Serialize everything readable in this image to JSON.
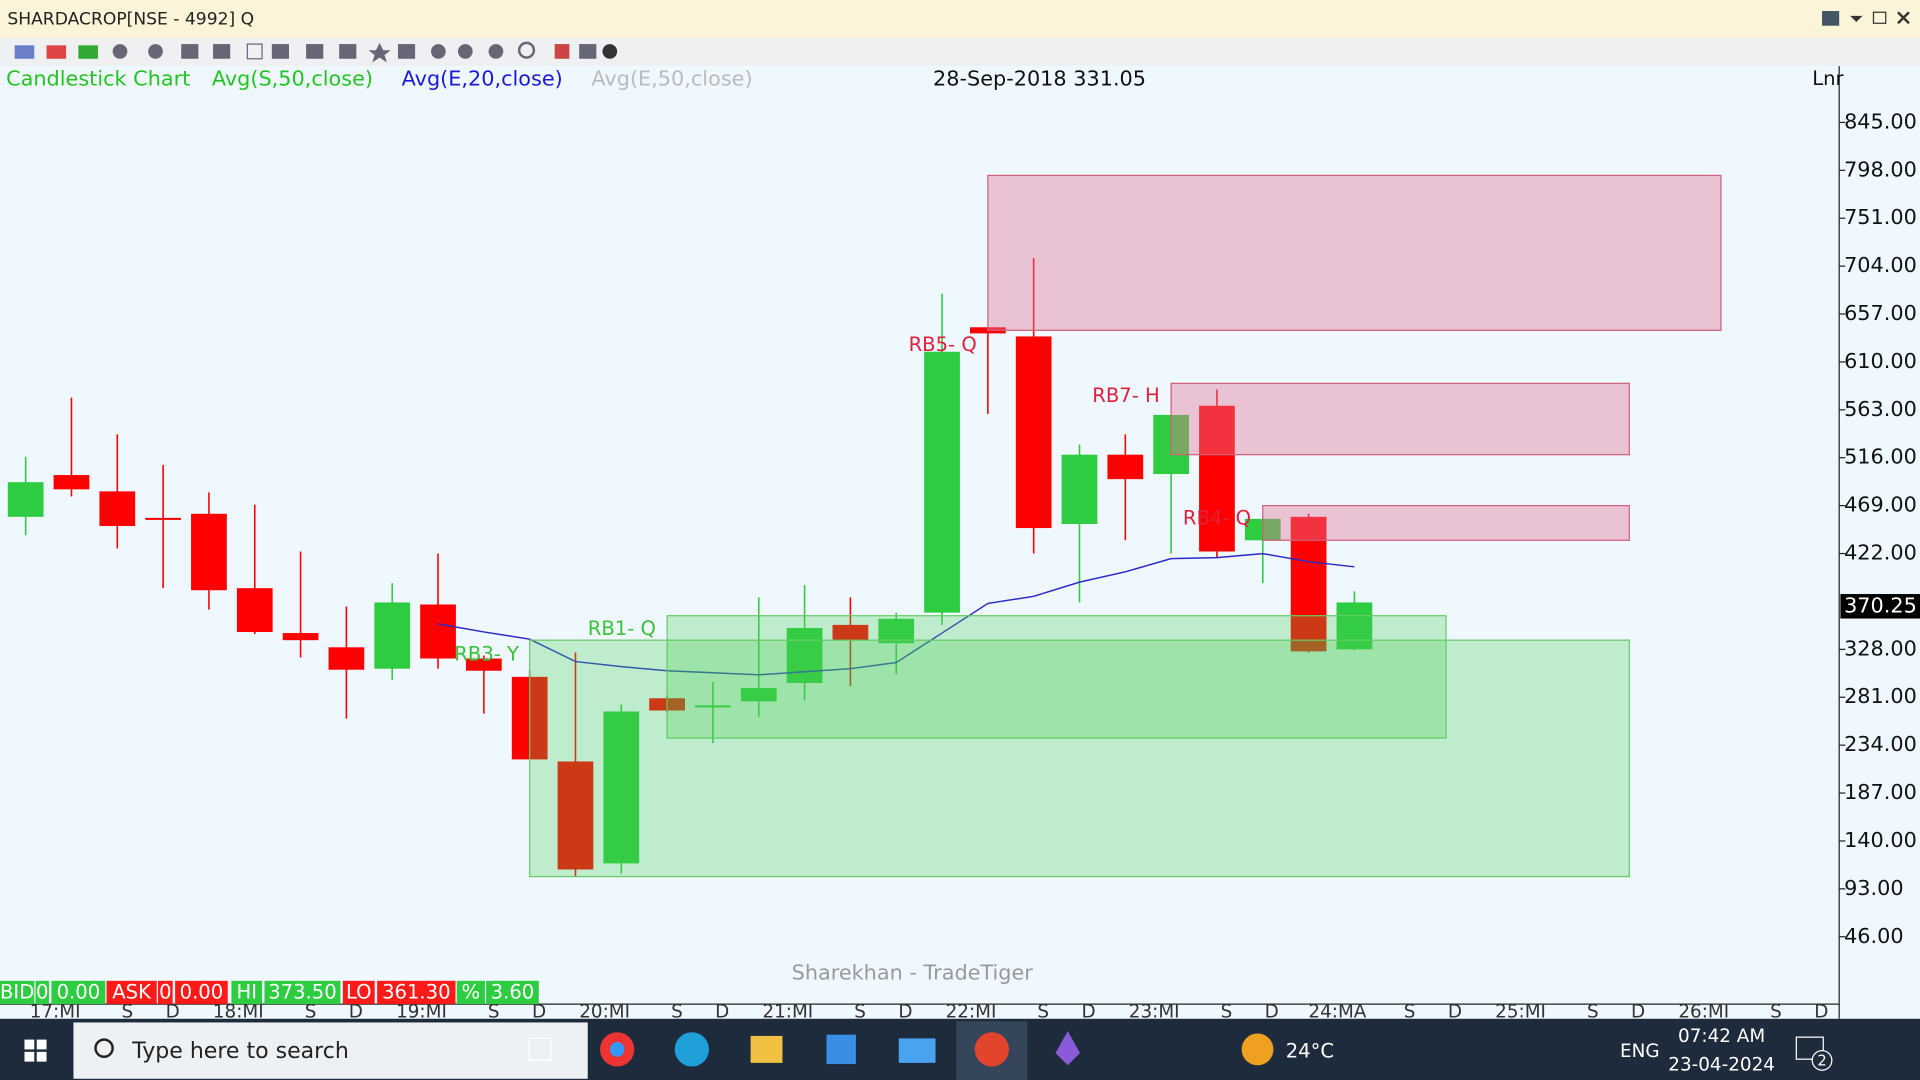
{
  "window": {
    "title": "SHARDACROP[NSE - 4992] Q"
  },
  "header": {
    "legend": [
      {
        "text": "Candlestick Chart",
        "color": "#22c422"
      },
      {
        "text": "Avg(S,50,close)",
        "color": "#22c422"
      },
      {
        "text": "Avg(E,20,close)",
        "color": "#1a1ad8"
      },
      {
        "text": "Avg(E,50,close)",
        "color": "#bbbbbb"
      }
    ],
    "cursor_info": "28-Sep-2018 331.05",
    "scale_mode": "Lnr"
  },
  "chart_data": {
    "type": "candlestick",
    "open": [
      458,
      499,
      483,
      457,
      461,
      388,
      344,
      330,
      309,
      372,
      319,
      301,
      218,
      118,
      280,
      271,
      277,
      295,
      352,
      334,
      364,
      644,
      635,
      451,
      519,
      500,
      567,
      435,
      458,
      328
    ],
    "high": [
      517,
      575,
      539,
      509,
      482,
      470,
      424,
      370,
      393,
      422,
      322,
      307,
      325,
      274,
      283,
      296,
      379,
      391,
      379,
      364,
      677,
      644,
      712,
      529,
      539,
      558,
      583,
      458,
      461,
      385
    ],
    "low": [
      440,
      478,
      427,
      388,
      367,
      343,
      320,
      260,
      298,
      309,
      265,
      220,
      105,
      108,
      266,
      236,
      262,
      278,
      292,
      304,
      352,
      559,
      422,
      374,
      435,
      422,
      418,
      393,
      325,
      327
    ],
    "close": [
      492,
      485,
      449,
      455,
      386,
      345,
      337,
      308,
      374,
      319,
      307,
      220,
      112,
      267,
      268,
      273,
      290,
      349,
      337,
      358,
      620,
      638,
      447,
      519,
      495,
      558,
      424,
      456,
      326,
      374
    ],
    "up_color": "#2ecc40",
    "down_color": "#ff0000",
    "series": [
      {
        "name": "Avg(E,20,close)",
        "color": "#2a2ac8",
        "values": [
          null,
          null,
          null,
          null,
          null,
          null,
          null,
          null,
          null,
          353,
          345,
          338,
          316,
          311,
          307,
          305,
          303,
          306,
          309,
          315,
          344,
          373,
          380,
          394,
          404,
          417,
          418,
          422,
          414,
          409
        ]
      }
    ],
    "zones": [
      {
        "x": [
          21,
          37
        ],
        "top": 793,
        "bottom": 641,
        "tone": "supply"
      },
      {
        "x": [
          25,
          35
        ],
        "top": 589,
        "bottom": 519,
        "tone": "supply"
      },
      {
        "x": [
          27,
          35
        ],
        "top": 469,
        "bottom": 435,
        "tone": "supply"
      },
      {
        "x": [
          14,
          31
        ],
        "top": 361,
        "bottom": 241,
        "tone": "demand"
      },
      {
        "x": [
          11,
          35
        ],
        "top": 337,
        "bottom": 105,
        "tone": "demand"
      }
    ],
    "annotations": [
      {
        "text": "RB5- Q",
        "color": "#e0203a"
      },
      {
        "text": "RB7- H",
        "color": "#e0203a"
      },
      {
        "text": "RB4- Q",
        "color": "#e0203a"
      },
      {
        "text": "RB1- Q",
        "color": "#38c238"
      },
      {
        "text": "RB3- Y",
        "color": "#38c238"
      }
    ],
    "xlim": [
      -0.56,
      39.5
    ],
    "ylim": [
      0,
      900
    ],
    "yticks": [
      {
        "value": 845,
        "label": "845.00"
      },
      {
        "value": 798,
        "label": "798.00"
      },
      {
        "value": 751,
        "label": "751.00"
      },
      {
        "value": 704,
        "label": "704.00"
      },
      {
        "value": 657,
        "label": "657.00"
      },
      {
        "value": 610,
        "label": "610.00"
      },
      {
        "value": 563,
        "label": "563.00"
      },
      {
        "value": 516,
        "label": "516.00"
      },
      {
        "value": 469,
        "label": "469.00"
      },
      {
        "value": 422,
        "label": "422.00"
      },
      {
        "value": 328,
        "label": "328.00"
      },
      {
        "value": 281,
        "label": "281.00"
      },
      {
        "value": 234,
        "label": "234.00"
      },
      {
        "value": 187,
        "label": "187.00"
      },
      {
        "value": 140,
        "label": "140.00"
      },
      {
        "value": 93,
        "label": "93.00"
      },
      {
        "value": 46,
        "label": "46.00"
      }
    ],
    "last_price": 370.25,
    "x_labels": [
      "17:MI",
      "S",
      "D",
      "18:MI",
      "S",
      "D",
      "19:MI",
      "S",
      "D",
      "20:MI",
      "S",
      "D",
      "21:MI",
      "S",
      "D",
      "22:MI",
      "S",
      "D",
      "23:MI",
      "S",
      "D",
      "24:MA",
      "S",
      "D",
      "25:MI",
      "S",
      "D",
      "26:MI",
      "S",
      "D"
    ],
    "watermark": "Sharekhan - TradeTiger"
  },
  "quote_bar": [
    {
      "text": "BID",
      "tone": "up"
    },
    {
      "text": "0",
      "tone": "up"
    },
    {
      "text": "0.00",
      "tone": "up"
    },
    {
      "text": "ASK",
      "tone": "down"
    },
    {
      "text": "0",
      "tone": "down"
    },
    {
      "text": "0.00",
      "tone": "down"
    },
    {
      "text": "HI",
      "tone": "up"
    },
    {
      "text": "373.50",
      "tone": "up"
    },
    {
      "text": "LO",
      "tone": "down"
    },
    {
      "text": "361.30",
      "tone": "down"
    },
    {
      "text": "%",
      "tone": "up"
    },
    {
      "text": "3.60",
      "tone": "up"
    }
  ],
  "taskbar": {
    "search": "Type here to search",
    "weather": "24°C",
    "language": "ENG",
    "time": "07:42 AM",
    "date": "23-04-2024",
    "notifications": "2"
  }
}
